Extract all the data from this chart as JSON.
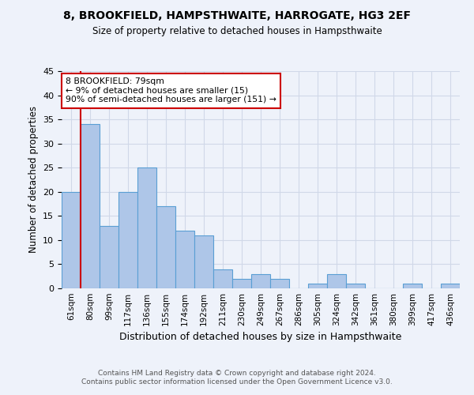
{
  "title": "8, BROOKFIELD, HAMPSTHWAITE, HARROGATE, HG3 2EF",
  "subtitle": "Size of property relative to detached houses in Hampsthwaite",
  "xlabel": "Distribution of detached houses by size in Hampsthwaite",
  "ylabel": "Number of detached properties",
  "footer_line1": "Contains HM Land Registry data © Crown copyright and database right 2024.",
  "footer_line2": "Contains public sector information licensed under the Open Government Licence v3.0.",
  "categories": [
    "61sqm",
    "80sqm",
    "99sqm",
    "117sqm",
    "136sqm",
    "155sqm",
    "174sqm",
    "192sqm",
    "211sqm",
    "230sqm",
    "249sqm",
    "267sqm",
    "286sqm",
    "305sqm",
    "324sqm",
    "342sqm",
    "361sqm",
    "380sqm",
    "399sqm",
    "417sqm",
    "436sqm"
  ],
  "values": [
    20,
    34,
    13,
    20,
    25,
    17,
    12,
    11,
    4,
    2,
    3,
    2,
    0,
    1,
    3,
    1,
    0,
    0,
    1,
    0,
    1
  ],
  "bar_color": "#aec6e8",
  "bar_edge_color": "#5a9fd4",
  "grid_color": "#d0d8e8",
  "background_color": "#eef2fa",
  "ylim": [
    0,
    45
  ],
  "yticks": [
    0,
    5,
    10,
    15,
    20,
    25,
    30,
    35,
    40,
    45
  ],
  "vline_color": "#cc0000",
  "vline_x_index": 1,
  "annotation_text": "8 BROOKFIELD: 79sqm\n← 9% of detached houses are smaller (15)\n90% of semi-detached houses are larger (151) →",
  "annotation_box_color": "#ffffff",
  "annotation_box_edge": "#cc0000"
}
